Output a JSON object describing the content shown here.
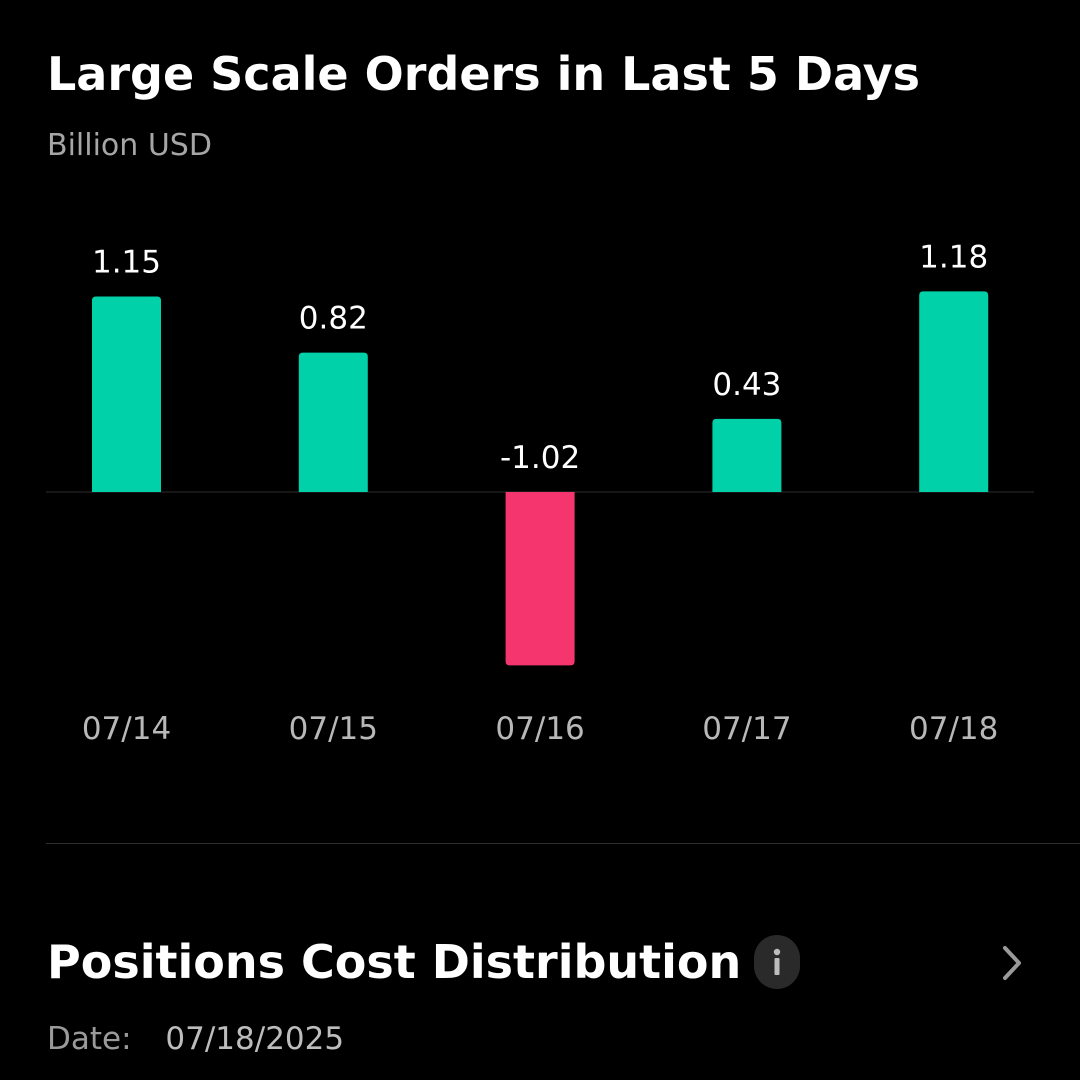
{
  "chart_data": {
    "type": "bar",
    "title": "Large Scale Orders in Last 5 Days",
    "unit": "Billion USD",
    "categories": [
      "07/14",
      "07/15",
      "07/16",
      "07/17",
      "07/18"
    ],
    "values": [
      1.15,
      0.82,
      -1.02,
      0.43,
      1.18
    ],
    "labels": [
      "1.15",
      "0.82",
      "-1.02",
      "0.43",
      "1.18"
    ],
    "colors": {
      "positive": "#00D1A8",
      "negative": "#F5366E"
    },
    "grid": false,
    "zero_line": true
  },
  "positions_section": {
    "title": "Positions Cost Distribution",
    "info_icon": "info-icon",
    "chevron_icon": "chevron-right-icon",
    "date_label": "Date:",
    "date_value": "07/18/2025"
  }
}
